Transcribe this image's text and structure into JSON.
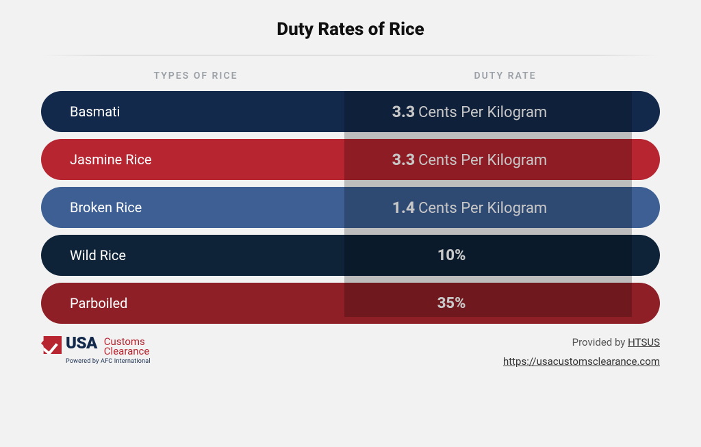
{
  "title": "Duty Rates of Rice",
  "columns": {
    "left": "TYPES OF RICE",
    "right": "DUTY RATE"
  },
  "rows": [
    {
      "type": "Basmati",
      "rate_num": "3.3",
      "rate_unit": "Cents Per Kilogram",
      "rate_pct": null,
      "bg": "#13294b"
    },
    {
      "type": "Jasmine Rice",
      "rate_num": "3.3",
      "rate_unit": "Cents Per Kilogram",
      "rate_pct": null,
      "bg": "#b72530"
    },
    {
      "type": "Broken Rice",
      "rate_num": "1.4",
      "rate_unit": "Cents Per Kilogram",
      "rate_pct": null,
      "bg": "#3d5f93"
    },
    {
      "type": "Wild Rice",
      "rate_num": null,
      "rate_unit": null,
      "rate_pct": "10%",
      "bg": "#0e2238"
    },
    {
      "type": "Parboiled",
      "rate_num": null,
      "rate_unit": null,
      "rate_pct": "35%",
      "bg": "#8f1f27"
    }
  ],
  "band_overlay_color": "rgba(0,0,0,0.22)",
  "background_color": "#f2f2f2",
  "logo": {
    "usa": "USA",
    "customs": "Customs",
    "clearance": "Clearance",
    "powered": "Powered by AFC International",
    "mark_color": "#b72530",
    "usa_color": "#13294b",
    "cc_color": "#b72530"
  },
  "footer": {
    "provided_prefix": "Provided by ",
    "provided_link": "HTSUS",
    "url": "https://usacustomsclearance.com"
  }
}
